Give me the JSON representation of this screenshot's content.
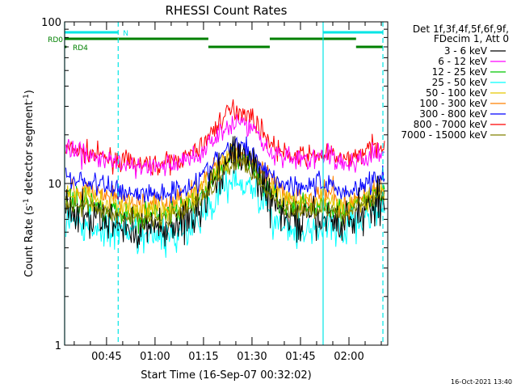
{
  "chart_data": {
    "type": "line",
    "title": "RHESSI Count Rates",
    "xlabel": "Start Time (16-Sep-07 00:32:02)",
    "ylabel_main": "Count Rate (s",
    "ylabel_sup": "-1",
    "ylabel_mid": " detector segment",
    "ylabel_sup2": "-1",
    "ylabel_end": ")",
    "yscale": "log",
    "ylim": [
      1,
      100
    ],
    "y_ticks": [
      {
        "value": 1,
        "label": "1"
      },
      {
        "value": 10,
        "label": "10"
      },
      {
        "value": 100,
        "label": "100"
      }
    ],
    "xlim_minutes": [
      32.03,
      132.0
    ],
    "x_ticks": [
      {
        "minute": 45,
        "label": "00:45"
      },
      {
        "minute": 60,
        "label": "01:00"
      },
      {
        "minute": 75,
        "label": "01:15"
      },
      {
        "minute": 90,
        "label": "01:30"
      },
      {
        "minute": 105,
        "label": "01:45"
      },
      {
        "minute": 120,
        "label": "02:00"
      }
    ],
    "legend_header": [
      "Det 1f,3f,4f,5f,6f,9f,",
      "FDecim 1, Att 0"
    ],
    "timestamp": "16-Oct-2021 13:40",
    "night_intervals": [
      [
        32.03,
        48.6
      ],
      [
        112.0,
        130.5
      ]
    ],
    "attenuator_bars": [
      {
        "label": "N",
        "color": "#00e5e5",
        "segments": [
          [
            32.03,
            48.6
          ],
          [
            112.0,
            130.5
          ]
        ]
      },
      {
        "label": "RD0",
        "color": "#008000",
        "segments": [
          [
            32.03,
            76.5
          ],
          [
            95.5,
            122.2
          ]
        ]
      },
      {
        "label": "",
        "color": "#008000",
        "segments": [
          [
            76.5,
            95.5
          ],
          [
            122.2,
            130.5
          ]
        ]
      },
      {
        "label": "RD4",
        "color": "#008000",
        "segments": [
          [
            32.03,
            32.6
          ]
        ]
      }
    ],
    "series": [
      {
        "name": "3 - 6 keV",
        "color": "#000000",
        "baseline": 5.2,
        "peak": 14.0,
        "noise": 0.13,
        "tail": [
          5.5,
          8.0
        ]
      },
      {
        "name": "6 - 12 keV",
        "color": "#ff00ff",
        "baseline": 12.5,
        "peak": 22.0,
        "noise": 0.07,
        "tail": [
          13.0,
          15.0
        ]
      },
      {
        "name": "12 - 25 keV",
        "color": "#00c800",
        "baseline": 6.3,
        "peak": 13.5,
        "noise": 0.08,
        "tail": [
          6.5,
          8.5
        ]
      },
      {
        "name": "25 - 50 keV",
        "color": "#00ffff",
        "baseline": 4.6,
        "peak": 10.0,
        "noise": 0.11,
        "tail": [
          5.0,
          7.0
        ]
      },
      {
        "name": "50 - 100 keV",
        "color": "#e5c800",
        "baseline": 6.8,
        "peak": 14.0,
        "noise": 0.08,
        "tail": [
          6.8,
          9.0
        ]
      },
      {
        "name": "100 - 300 keV",
        "color": "#ff7f00",
        "baseline": 7.3,
        "peak": 14.5,
        "noise": 0.08,
        "tail": [
          7.0,
          9.5
        ]
      },
      {
        "name": "300 - 800 keV",
        "color": "#0000ff",
        "baseline": 8.6,
        "peak": 15.5,
        "noise": 0.07,
        "tail": [
          8.5,
          11.0
        ]
      },
      {
        "name": "800 - 7000 keV",
        "color": "#ff0000",
        "baseline": 13.0,
        "peak": 26.5,
        "noise": 0.06,
        "tail": [
          13.5,
          17.5
        ]
      },
      {
        "name": "7000 - 15000 keV",
        "color": "#808000",
        "baseline": 6.0,
        "peak": 12.5,
        "noise": 0.05,
        "tail": [
          6.5,
          8.5
        ]
      }
    ]
  }
}
